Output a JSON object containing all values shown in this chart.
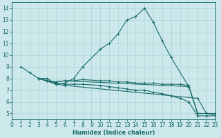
{
  "xlabel": "Humidex (Indice chaleur)",
  "bg_color": "#cce8ea",
  "grid_color": "#b0d8da",
  "line_color": "#1a6b6b",
  "xlim": [
    0,
    23
  ],
  "ylim": [
    4.5,
    14.5
  ],
  "xticks": [
    0,
    1,
    2,
    3,
    4,
    5,
    6,
    7,
    8,
    9,
    10,
    11,
    12,
    13,
    14,
    15,
    16,
    17,
    18,
    19,
    20,
    21,
    22,
    23
  ],
  "yticks": [
    5,
    6,
    7,
    8,
    9,
    10,
    11,
    12,
    13,
    14
  ],
  "lines": [
    {
      "x": [
        1,
        2,
        3,
        4,
        5,
        6,
        7,
        8,
        10,
        11,
        12,
        13,
        14,
        15,
        16,
        17,
        18,
        20
      ],
      "y": [
        9,
        8.5,
        8.0,
        8.0,
        7.5,
        7.6,
        8.0,
        9.0,
        10.5,
        11.0,
        11.8,
        13.0,
        13.3,
        14.0,
        12.8,
        11.2,
        9.8,
        7.3
      ]
    },
    {
      "x": [
        3,
        4,
        5,
        6,
        20,
        21,
        22,
        23
      ],
      "y": [
        8.0,
        7.8,
        7.7,
        7.8,
        7.3,
        5.0,
        5.0,
        5.0
      ]
    },
    {
      "x": [
        3,
        4,
        5,
        6,
        7,
        8,
        10,
        11,
        12,
        13,
        14,
        15,
        16,
        17,
        18,
        19,
        20,
        21,
        22,
        23
      ],
      "y": [
        8.0,
        7.8,
        7.6,
        7.5,
        7.5,
        7.5,
        7.4,
        7.3,
        7.2,
        7.1,
        7.0,
        7.0,
        6.8,
        6.7,
        6.5,
        6.3,
        6.0,
        4.8,
        4.8,
        4.8
      ]
    },
    {
      "x": [
        3,
        4,
        5,
        6,
        7,
        8,
        10,
        11,
        12,
        13,
        14,
        15,
        16,
        17,
        18,
        19,
        20,
        21,
        22,
        23
      ],
      "y": [
        8.0,
        7.8,
        7.7,
        7.8,
        7.8,
        7.9,
        7.8,
        7.8,
        7.7,
        7.7,
        7.6,
        7.6,
        7.6,
        7.5,
        7.5,
        7.5,
        7.4,
        5.0,
        5.0,
        5.0
      ]
    },
    {
      "x": [
        3,
        5,
        6,
        21,
        22,
        23
      ],
      "y": [
        8.0,
        7.5,
        7.4,
        6.3,
        5.0,
        4.9
      ]
    }
  ]
}
